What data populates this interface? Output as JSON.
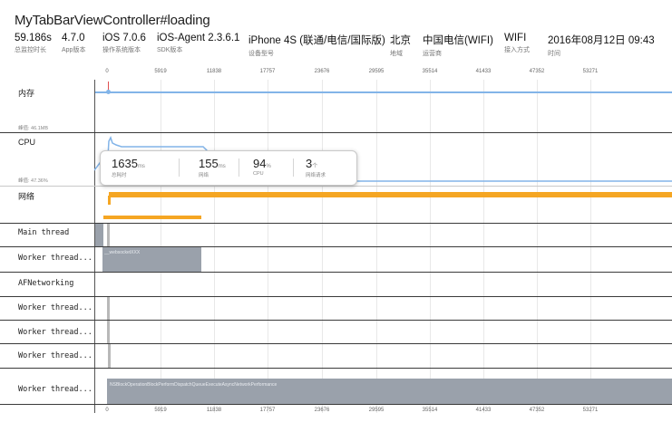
{
  "header": {
    "title": "MyTabBarViewController#loading",
    "meta": [
      {
        "value": "59.186s",
        "label": "总监控时长"
      },
      {
        "value": "4.7.0",
        "label": "App版本"
      },
      {
        "value": "iOS 7.0.6",
        "label": "操作系统版本"
      },
      {
        "value": "iOS-Agent 2.3.6.1",
        "label": "SDK版本"
      },
      {
        "value": "iPhone 4S (联通/电信/国际版)",
        "label": "设备型号"
      },
      {
        "value": "北京",
        "label": "地域"
      },
      {
        "value": "中国电信(WIFI)",
        "label": "运营商"
      },
      {
        "value": "WIFI",
        "label": "接入方式"
      },
      {
        "value": "2016年08月12日 09:43",
        "label": "时间"
      }
    ]
  },
  "axis": {
    "ticks": [
      "0",
      "5919",
      "11838",
      "17757",
      "23676",
      "29595",
      "35514",
      "41433",
      "47352",
      "53271"
    ]
  },
  "lanes": {
    "memory": {
      "label": "内存",
      "sub": "峰值: 46.1MB"
    },
    "cpu": {
      "label": "CPU",
      "sub": "峰值: 47.36%"
    },
    "network": {
      "label": "网络"
    },
    "threads": [
      {
        "name": "Main thread"
      },
      {
        "name": "Worker thread...",
        "bar_text": "__websocketXXX"
      },
      {
        "name": "AFNetworking"
      },
      {
        "name": "Worker thread..."
      },
      {
        "name": "Worker thread..."
      },
      {
        "name": "Worker thread..."
      },
      {
        "name": "Worker thread...",
        "bar_text": "NSBlockOperationBlockPerformDispatchQueueExecuteAsyncNetworkPerformance"
      }
    ]
  },
  "popup": {
    "items": [
      {
        "value": "1635",
        "unit": "ms",
        "label": "总耗时"
      },
      {
        "value": "155",
        "unit": "ms",
        "label": "网络"
      },
      {
        "value": "94",
        "unit": "%",
        "label": "CPU"
      },
      {
        "value": "3",
        "unit": "个",
        "label": "网络请求"
      }
    ]
  },
  "colors": {
    "memory_line": "#82b4e8",
    "cpu_line": "#82b4e8",
    "network": "#f5a623",
    "thread_bar": "#9aa1ab"
  }
}
